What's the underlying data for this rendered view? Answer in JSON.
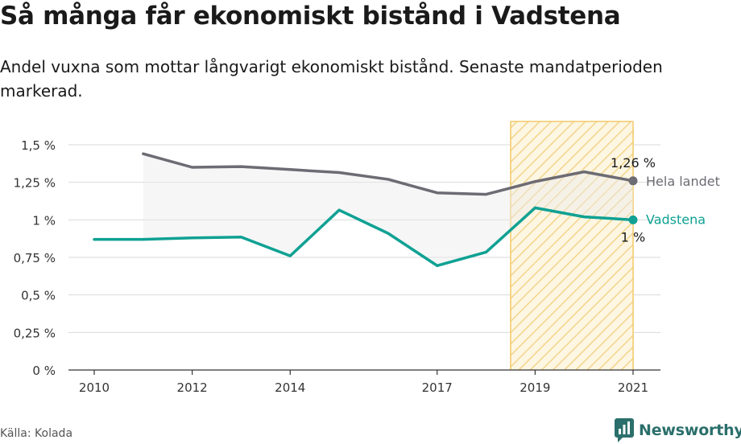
{
  "title": "Så många får ekonomiskt bistånd i Vadstena",
  "subtitle": "Andel vuxna som mottar långvarigt ekonomiskt bistånd. Senaste mandatperioden markerad.",
  "source": "Källa: Kolada",
  "brand": {
    "name": "Newsworthy",
    "icon": "newsworthy-logo-icon"
  },
  "colors": {
    "national": "#6d6b73",
    "local": "#0fa193",
    "highlight": "#f3c96a",
    "grid": "#d9d9d9"
  },
  "chart_data": {
    "type": "line",
    "title": "Så många får ekonomiskt bistånd i Vadstena",
    "xlabel": "",
    "ylabel": "",
    "x": [
      2010,
      2011,
      2012,
      2013,
      2014,
      2015,
      2016,
      2017,
      2018,
      2019,
      2020,
      2021
    ],
    "xticks": [
      2010,
      2012,
      2014,
      2017,
      2019,
      2021
    ],
    "ylim": [
      0,
      1.6
    ],
    "yticks": [
      0,
      0.25,
      0.5,
      0.75,
      1,
      1.25,
      1.5
    ],
    "ytick_labels": [
      "0 %",
      "0,25 %",
      "0,5 %",
      "0,75 %",
      "1 %",
      "1,25 %",
      "1,5 %"
    ],
    "highlight_period": [
      2018.5,
      2021
    ],
    "grid": true,
    "series": [
      {
        "name": "Hela landet",
        "values": [
          null,
          1.44,
          1.35,
          1.355,
          1.335,
          1.315,
          1.27,
          1.18,
          1.17,
          1.255,
          1.32,
          1.26
        ],
        "end_label": "1,26 %"
      },
      {
        "name": "Vadstena",
        "values": [
          0.87,
          0.87,
          0.88,
          0.885,
          0.76,
          1.065,
          0.91,
          0.695,
          0.785,
          1.08,
          1.02,
          1.0
        ],
        "end_label": "1 %"
      }
    ]
  }
}
